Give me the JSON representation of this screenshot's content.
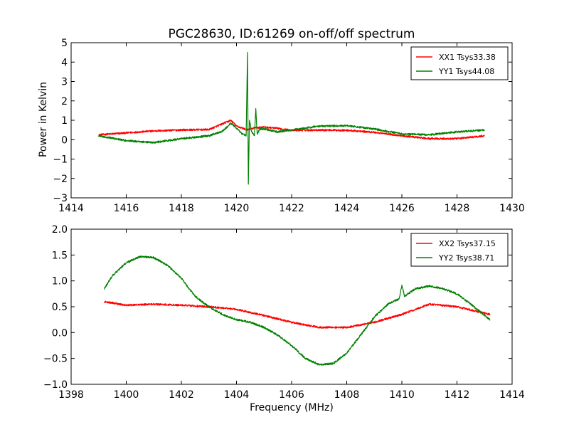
{
  "figure": {
    "title": "PGC28630, ID:61269 on-off/off spectrum",
    "ylabel": "Power in Kelvin",
    "xlabel": "Frequency (MHz)"
  },
  "chart_data": [
    {
      "type": "line",
      "title": "PGC28630, ID:61269 on-off/off spectrum",
      "xlabel": "",
      "ylabel": "Power in Kelvin",
      "xlim": [
        1414,
        1430
      ],
      "ylim": [
        -3,
        5
      ],
      "xticks": [
        "1414",
        "1416",
        "1418",
        "1420",
        "1422",
        "1424",
        "1426",
        "1428",
        "1430"
      ],
      "yticks": [
        "−3",
        "−2",
        "−1",
        "0",
        "1",
        "2",
        "3",
        "4",
        "5"
      ],
      "legend_position": "top-right",
      "series": [
        {
          "name": "XX1 Tsys33.38",
          "color": "#ff0000",
          "x": [
            1415.0,
            1416.0,
            1417.0,
            1418.0,
            1419.0,
            1419.8,
            1420.0,
            1420.2,
            1420.4,
            1420.5,
            1420.7,
            1421.0,
            1421.5,
            1422.0,
            1423.0,
            1424.0,
            1425.0,
            1426.0,
            1427.0,
            1428.0,
            1429.0
          ],
          "y": [
            0.25,
            0.35,
            0.45,
            0.5,
            0.52,
            1.0,
            0.7,
            0.6,
            0.5,
            0.55,
            0.62,
            0.65,
            0.58,
            0.48,
            0.5,
            0.48,
            0.38,
            0.2,
            0.05,
            0.05,
            0.2
          ]
        },
        {
          "name": "YY1 Tsys44.08",
          "color": "#008000",
          "x": [
            1415.0,
            1416.0,
            1417.0,
            1418.0,
            1419.0,
            1419.5,
            1419.8,
            1420.0,
            1420.2,
            1420.35,
            1420.4,
            1420.43,
            1420.47,
            1420.55,
            1420.65,
            1420.7,
            1420.75,
            1420.85,
            1421.0,
            1421.5,
            1422.0,
            1423.0,
            1424.0,
            1425.0,
            1426.0,
            1427.0,
            1428.0,
            1429.0
          ],
          "y": [
            0.2,
            -0.05,
            -0.15,
            0.05,
            0.2,
            0.45,
            0.85,
            0.6,
            0.3,
            0.2,
            4.5,
            -2.3,
            1.0,
            0.4,
            0.2,
            1.6,
            0.3,
            0.55,
            0.55,
            0.4,
            0.5,
            0.7,
            0.72,
            0.55,
            0.3,
            0.25,
            0.4,
            0.5
          ]
        }
      ]
    },
    {
      "type": "line",
      "title": "",
      "xlabel": "Frequency (MHz)",
      "ylabel": "",
      "xlim": [
        1398,
        1414
      ],
      "ylim": [
        -1.0,
        2.0
      ],
      "xticks": [
        "1398",
        "1400",
        "1402",
        "1404",
        "1406",
        "1408",
        "1410",
        "1412",
        "1414"
      ],
      "yticks": [
        "−1.0",
        "−0.5",
        "0.0",
        "0.5",
        "1.0",
        "1.5",
        "2.0"
      ],
      "legend_position": "top-right",
      "series": [
        {
          "name": "XX2 Tsys37.15",
          "color": "#ff0000",
          "x": [
            1399.2,
            1400.0,
            1401.0,
            1402.0,
            1403.0,
            1404.0,
            1405.0,
            1406.0,
            1407.0,
            1408.0,
            1409.0,
            1410.0,
            1411.0,
            1412.0,
            1413.2
          ],
          "y": [
            0.6,
            0.53,
            0.55,
            0.53,
            0.5,
            0.45,
            0.33,
            0.2,
            0.1,
            0.1,
            0.2,
            0.35,
            0.55,
            0.5,
            0.35
          ]
        },
        {
          "name": "YY2 Tsys38.71",
          "color": "#008000",
          "x": [
            1399.2,
            1399.5,
            1400.0,
            1400.5,
            1401.0,
            1401.5,
            1402.0,
            1402.5,
            1403.0,
            1403.5,
            1404.0,
            1404.5,
            1405.0,
            1405.5,
            1406.0,
            1406.5,
            1407.0,
            1407.5,
            1408.0,
            1408.5,
            1409.0,
            1409.5,
            1409.9,
            1410.0,
            1410.1,
            1410.5,
            1411.0,
            1411.5,
            1412.0,
            1412.5,
            1413.2
          ],
          "y": [
            0.85,
            1.1,
            1.35,
            1.47,
            1.45,
            1.3,
            1.05,
            0.7,
            0.5,
            0.35,
            0.25,
            0.2,
            0.1,
            -0.05,
            -0.25,
            -0.5,
            -0.62,
            -0.6,
            -0.4,
            -0.05,
            0.3,
            0.55,
            0.65,
            0.92,
            0.7,
            0.85,
            0.9,
            0.85,
            0.75,
            0.55,
            0.25
          ]
        }
      ]
    }
  ]
}
